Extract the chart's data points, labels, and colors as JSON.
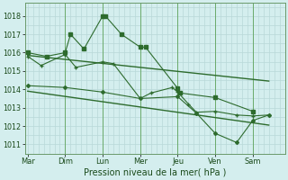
{
  "xlabel": "Pression niveau de la mer( hPa )",
  "bg_color": "#d4eeee",
  "grid_color": "#b8d8d8",
  "line_color": "#2d6b2d",
  "ylim": [
    1010.5,
    1018.7
  ],
  "yticks": [
    1011,
    1012,
    1013,
    1014,
    1015,
    1016,
    1017,
    1018
  ],
  "x_ticks_labels": [
    "Mar",
    "Dim",
    "Lun",
    "Mer",
    "Jeu",
    "Ven",
    "Sam"
  ],
  "x_ticks_pos": [
    0,
    14,
    28,
    42,
    56,
    70,
    84
  ],
  "xlim": [
    -1,
    96
  ],
  "series1_x": [
    0,
    7,
    14,
    16,
    21,
    28,
    29,
    35,
    42,
    44,
    56,
    57,
    70,
    84
  ],
  "series1_y": [
    1016.0,
    1015.8,
    1016.0,
    1017.0,
    1016.2,
    1018.0,
    1018.0,
    1017.0,
    1016.3,
    1016.3,
    1014.05,
    1013.8,
    1013.55,
    1012.8
  ],
  "series2_x": [
    0,
    5,
    14,
    18,
    28,
    32,
    42,
    46,
    54,
    56,
    60,
    63,
    70,
    78,
    84,
    90
  ],
  "series2_y": [
    1015.8,
    1015.3,
    1015.9,
    1015.2,
    1015.5,
    1015.4,
    1013.5,
    1013.8,
    1014.1,
    1013.85,
    1013.2,
    1012.75,
    1012.8,
    1012.6,
    1012.55,
    1012.6
  ],
  "series3_x": [
    0,
    14,
    28,
    42,
    56,
    63,
    70,
    78,
    84,
    90
  ],
  "series3_y": [
    1014.2,
    1014.1,
    1013.85,
    1013.5,
    1013.6,
    1012.7,
    1011.6,
    1011.1,
    1012.3,
    1012.6
  ],
  "trend1_x": [
    0,
    90
  ],
  "trend1_y": [
    1015.85,
    1014.45
  ],
  "trend2_x": [
    0,
    90
  ],
  "trend2_y": [
    1013.9,
    1012.05
  ]
}
